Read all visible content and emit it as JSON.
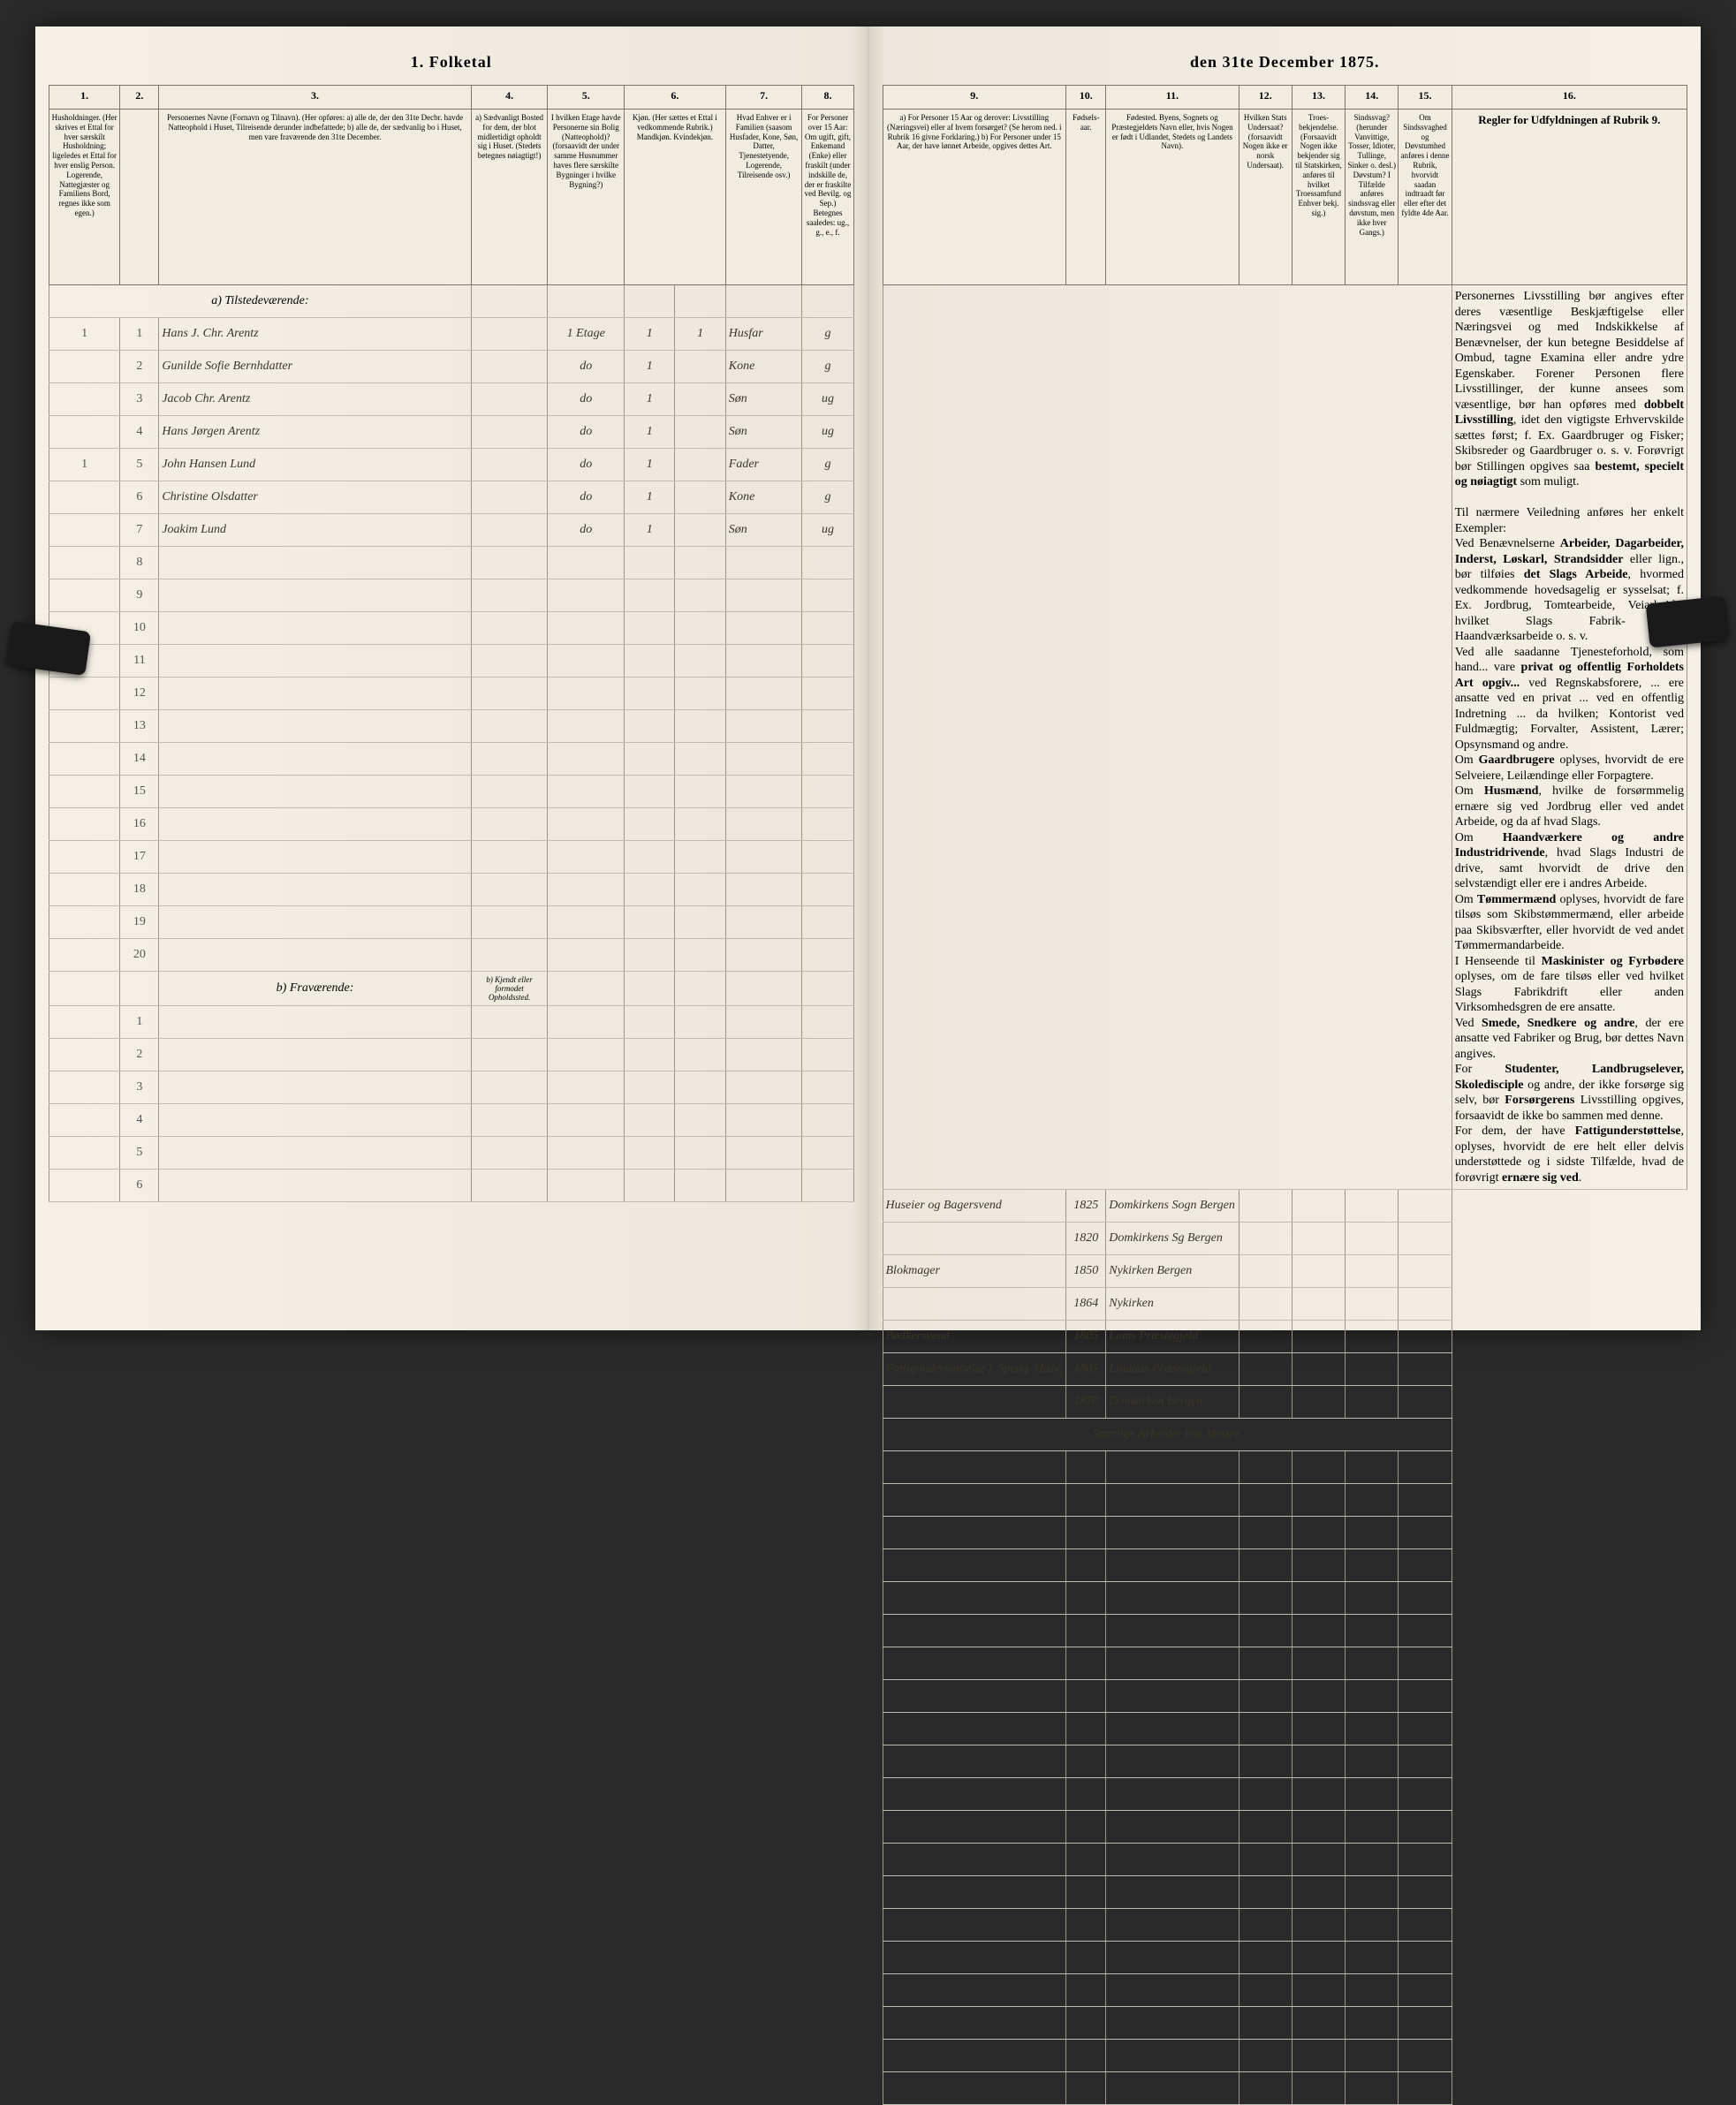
{
  "title_prefix": "1.  Folketal",
  "title_suffix": "den 31te December 1875.",
  "left": {
    "colnums": [
      "1.",
      "2.",
      "3.",
      "4.",
      "5.",
      "6.",
      "7.",
      "8."
    ],
    "headers": [
      "Husholdninger.\n(Her skrives et Ettal for hver særskilt Husholdning; ligeledes et Ettal for hver enslig Person.\nLogerende, Nattegjæster og Familiens Bord, regnes ikke som egen.)",
      "",
      "Personernes Navne (Fornavn og Tilnavn).\n(Her opføres:\na) alle de, der den 31te Decbr. havde Natteophold i Huset, Tilreisende derunder indbefattede;\nb) alle de, der sædvanlig bo i Huset, men vare fraværende den 31te December.",
      "a) Sædvanligt Bosted for dem, der blot midlertidigt opholdt sig i Huset.\n(Stedets betegnes nøiagtigt!)",
      "I hvilken Etage havde Personerne sin Bolig (Natteophold)? (forsaavidt der under samme Husnummer haves flere særskilte Bygninger i hvilke Bygning?)",
      "Kjøn. (Her sættes et Ettal i vedkommende Rubrik.) Mandkjøn. Kvindekjøn.",
      "Hvad Enhver er i Familien (saasom Husfader, Kone, Søn, Datter, Tjenestetyende, Logerende, Tilreisende osv.)",
      "For Personer over 15 Aar: Om ugift, gift, Enkemand (Enke) eller fraskilt (under indskille de, der er fraskilte ved Bevilg. og Sep.) Betegnes saaledes: ug., g., e., f."
    ],
    "section_a": "a) Tilstedeværende:",
    "section_b": "b) Fraværende:",
    "section_b_note": "b) Kjendt eller formodet Opholdssted.",
    "rows": [
      {
        "hh": "1",
        "n": "1",
        "name": "Hans J. Chr. Arentz",
        "c4": "",
        "c5": "1 Etage",
        "c5b": "1",
        "c6": "1",
        "c7": "Husfar",
        "c8": "g"
      },
      {
        "hh": "",
        "n": "2",
        "name": "Gunilde Sofie Bernhdatter",
        "c4": "",
        "c5": "do",
        "c5b": "",
        "c6": "1",
        "c7": "Kone",
        "c8": "g"
      },
      {
        "hh": "",
        "n": "3",
        "name": "Jacob Chr. Arentz",
        "c4": "",
        "c5": "do",
        "c5b": "",
        "c6": "1",
        "c7": "Søn",
        "c8": "ug"
      },
      {
        "hh": "",
        "n": "4",
        "name": "Hans Jørgen Arentz",
        "c4": "",
        "c5": "do",
        "c5b": "",
        "c6": "1",
        "c7": "Søn",
        "c8": "ug"
      },
      {
        "hh": "1",
        "n": "5",
        "name": "John Hansen Lund",
        "c4": "",
        "c5": "do",
        "c5b": "",
        "c6": "1",
        "c7": "Fader",
        "c8": "g"
      },
      {
        "hh": "",
        "n": "6",
        "name": "Christine Olsdatter",
        "c4": "",
        "c5": "do",
        "c5b": "",
        "c6": "1",
        "c7": "Kone",
        "c8": "g"
      },
      {
        "hh": "",
        "n": "7",
        "name": "Joakim Lund",
        "c4": "",
        "c5": "do",
        "c5b": "",
        "c6": "1",
        "c7": "Søn",
        "c8": "ug"
      }
    ],
    "blank_a": [
      "8",
      "9",
      "10",
      "11",
      "12",
      "13",
      "14",
      "15",
      "16",
      "17",
      "18",
      "19",
      "20"
    ],
    "blank_b": [
      "1",
      "2",
      "3",
      "4",
      "5",
      "6"
    ]
  },
  "right": {
    "colnums": [
      "9.",
      "10.",
      "11.",
      "12.",
      "13.",
      "14.",
      "15.",
      "16."
    ],
    "headers": [
      "a) For Personer 15 Aar og derover: Livsstilling (Næringsvei) eller af hvem forsørget? (Se herom ned. i Rubrik 16 givne Forklaring.)\nb) For Personer under 15 Aar, der have lønnet Arbeide, opgives dettes Art.",
      "Fødsels-aar.",
      "Fødested.\nByens, Sognets og Præstegjeldets Navn eller, hvis Nogen er født i Udlandet, Stedets og Landets Navn).",
      "Hvilken Stats Undersaat?\n(forsaavidt Nogen ikke er norsk Undersaat).",
      "Troes-bekjendelse.\n(Forsaavidt Nogen ikke bekjender sig til Statskirken, anføres til hvilket Troessamfund Enhver bekj. sig.)",
      "Sindssvag? (herunder Vanvittige, Tosser, Idioter, Tullinge, Sinker o. desl.) Døvstum? I Tilfælde anføres sindssvag eller døvstum, men ikke hver Gangs.)",
      "Om Sindssvaghed og Døvstumhed anføres i denne Rubrik, hvorvidt saadan indtraadt før eller efter det fyldte 4de Aar.",
      "Regler for Udfyldningen af Rubrik 9."
    ],
    "rows": [
      {
        "c9": "Huseier og Bagersvend",
        "c10": "1825",
        "c11": "Domkirkens Sogn Bergen",
        "c12": "",
        "c13": "",
        "c14": "",
        "c15": ""
      },
      {
        "c9": "",
        "c10": "1820",
        "c11": "Domkirkens Sg Bergen",
        "c12": "",
        "c13": "",
        "c14": "",
        "c15": ""
      },
      {
        "c9": "Blokmager",
        "c10": "1850",
        "c11": "Nykirken Bergen",
        "c12": "",
        "c13": "",
        "c14": "",
        "c15": ""
      },
      {
        "c9": "",
        "c10": "1864",
        "c11": "Nykirken",
        "c12": "",
        "c13": "",
        "c14": "",
        "c15": ""
      },
      {
        "c9": "Bødkersvend",
        "c10": "1805",
        "c11": "Loms Præstegjeld",
        "c12": "",
        "c13": "",
        "c14": "",
        "c15": ""
      },
      {
        "c9": "Fattigunderstøttelse f. Spedg. Husv.",
        "c10": "1805",
        "c11": "Lindaas Præstegjeld",
        "c12": "",
        "c13": "",
        "c14": "",
        "c15": ""
      },
      {
        "c9": "",
        "c10": "1870",
        "c11": "Domkirken Bergen",
        "c12": "",
        "c13": "",
        "c14": "",
        "c15": ""
      }
    ],
    "note_row": "Samtlige Arbeider hos Mestre.",
    "rules_text": "Personernes Livsstilling bør angives efter deres væsentlige Beskjæftigelse eller Næringsvei og med Indskikkelse af Benævnelser, der kun betegne Besiddelse af Ombud, tagne Examina eller andre ydre Egenskaber. Forener Personen flere Livsstillinger, der kunne ansees som væsentlige, bør han opføres med <b>dobbelt Livsstilling</b>, idet den vigtigste Erhvervskilde sættes først; f. Ex. Gaardbruger og Fisker; Skibsreder og Gaardbruger o. s. v. Forøvrigt bør Stillingen opgives saa <b>bestemt, specielt og nøiagtigt</b> som muligt.<br><br>Til nærmere Veiledning anføres her enkelt Exempler:<br>Ved Benævnelserne <b>Arbeider, Dagarbeider, Inderst, Løskarl, Strandsidder</b> eller lign., bør tilføies <b>det Slags Arbeide</b>, hvormed vedkommende hovedsagelig er sysselsat; f. Ex. Jordbrug, Tomtearbeide, Veiarbeide, hvilket Slags Fabrik- eller Haandværksarbeide o. s. v.<br>Ved alle saadanne Tjenesteforhold, som hand... vare <b>privat og offentlig Forholdets Art opgiv...</b> ved Regnskabsforere, ... ere ansatte ved en privat ... ved en offentlig Indretning ... da hvilken; Kontorist ved Fuldmægtig; Forvalter, Assistent, Lærer; Opsynsmand og andre.<br>Om <b>Gaardbrugere</b> oplyses, hvorvidt de ere Selveiere, Leilændinge eller Forpagtere.<br>Om <b>Husmænd</b>, hvilke de forsørmmelig ernære sig ved Jordbrug eller ved andet Arbeide, og da af hvad Slags.<br>Om <b>Haandværkere og andre Industridrivende</b>, hvad Slags Industri de drive, samt hvorvidt de drive den selvstændigt eller ere i andres Arbeide.<br>Om <b>Tømmermænd</b> oplyses, hvorvidt de fare tilsøs som Skibstømmermænd, eller arbeide paa Skibsværfter, eller hvorvidt de ved andet Tømmermandarbeide.<br>I Henseende til <b>Maskinister og Fyrbødere</b> oplyses, om de fare tilsøs eller ved hvilket Slags Fabrikdrift eller anden Virksomhedsgren de ere ansatte.<br>Ved <b>Smede, Snedkere og andre</b>, der ere ansatte ved Fabriker og Brug, bør dettes Navn angives.<br>For <b>Studenter, Landbrugselever, Skoledisciple</b> og andre, der ikke forsørge sig selv, bør <b>Forsørgerens</b> Livsstilling opgives, forsaavidt de ikke bo sammen med denne.<br>For dem, der have <b>Fattigunderstøttelse</b>, oplyses, hvorvidt de ere helt eller delvis understøttede og i sidste Tilfælde, hvad de forøvrigt <b>ernære sig ved</b>."
  },
  "colors": {
    "page_bg": "#f4f0e6",
    "border": "#7a7568",
    "ink": "#3a3528"
  }
}
